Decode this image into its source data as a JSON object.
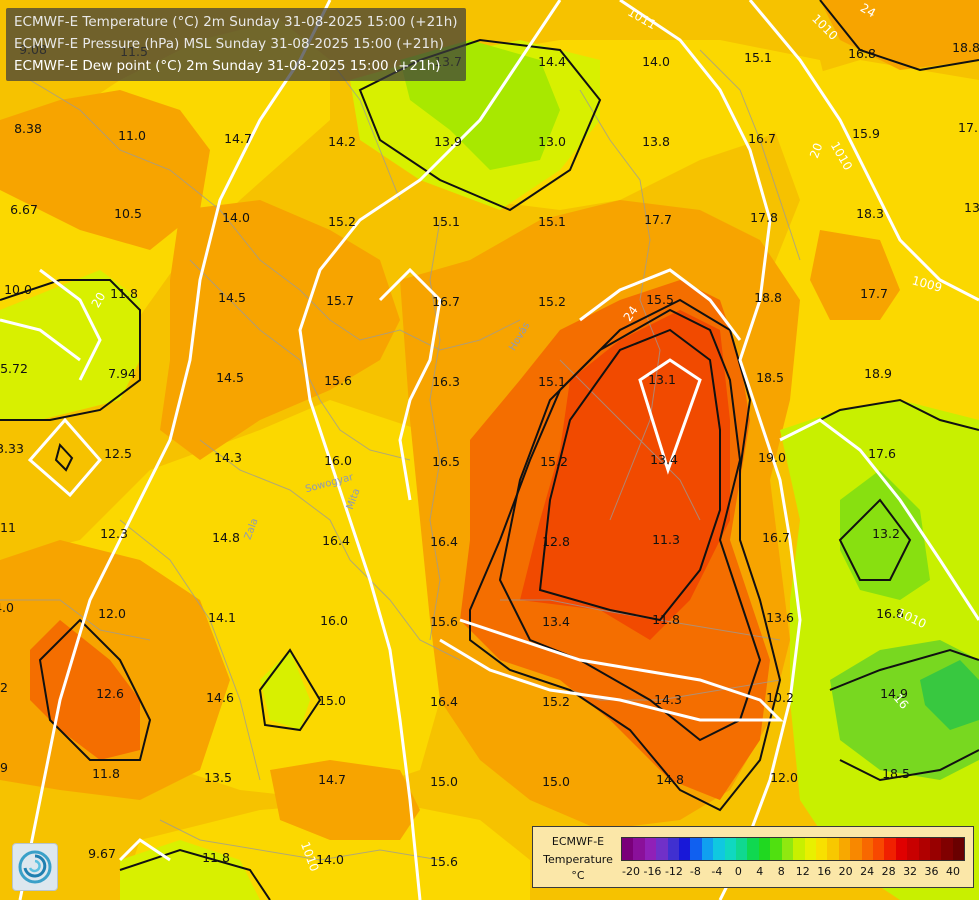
{
  "header": {
    "lines": [
      "ECMWF-E Temperature (°C) 2m Sunday 31-08-2025 15:00 (+21h)",
      "ECMWF-E Pressure (hPa) MSL Sunday 31-08-2025 15:00 (+21h)",
      "ECMWF-E Dew point (°C) 2m Sunday 31-08-2025 15:00 (+21h)"
    ]
  },
  "map": {
    "values": [
      "9.08",
      "11.5",
      "13.7",
      "14.4",
      "14.0",
      "15.1",
      "16.8",
      "18.8",
      "8.38",
      "11.0",
      "14.7",
      "14.2",
      "13.9",
      "13.0",
      "13.8",
      "16.7",
      "15.9",
      "17.",
      "6.67",
      "10.5",
      "14.0",
      "15.2",
      "15.1",
      "15.1",
      "17.7",
      "17.8",
      "18.3",
      "13",
      "10.0",
      "11.8",
      "14.5",
      "15.7",
      "16.7",
      "15.2",
      "15.5",
      "18.8",
      "17.7",
      "5.72",
      "7.94",
      "14.5",
      "15.6",
      "16.3",
      "15.1",
      "13.1",
      "18.5",
      "18.9",
      "3.33",
      "12.5",
      "14.3",
      "16.0",
      "16.5",
      "15.2",
      "13.4",
      "19.0",
      "17.6",
      ".11",
      "12.3",
      "14.8",
      "16.4",
      "16.4",
      "12.8",
      "11.3",
      "16.7",
      "13.2",
      "4.0",
      "12.0",
      "14.1",
      "16.0",
      "15.6",
      "13.4",
      "11.8",
      "13.6",
      "16.8",
      ".2",
      "12.6",
      "14.6",
      "15.0",
      "16.4",
      "15.2",
      "14.3",
      "10.2",
      "14.9",
      ".9",
      "11.8",
      "13.5",
      "14.7",
      "15.0",
      "15.0",
      "14.8",
      "12.0",
      "18.5",
      "9.67",
      "11.8",
      "14.0",
      "15.6"
    ],
    "isobar_labels": [
      "1011",
      "1010",
      "1010",
      "1009",
      "1010",
      "1010"
    ],
    "dewpoint_labels": [
      "24",
      "20",
      "20",
      "24",
      "16"
    ],
    "river_labels": [
      "Hovás",
      "Sowogyar",
      "Zala",
      "Mita"
    ]
  },
  "scale": {
    "title_lines": [
      "ECMWF-E",
      "Temperature",
      "°C"
    ],
    "ticks": [
      "-20",
      "-16",
      "-12",
      "-8",
      "-4",
      "0",
      "4",
      "8",
      "12",
      "16",
      "20",
      "24",
      "28",
      "32",
      "36",
      "40"
    ],
    "colors": [
      "#7a007a",
      "#8a109a",
      "#9020b8",
      "#7030c8",
      "#4030d0",
      "#1818d8",
      "#1060f0",
      "#10a0f0",
      "#10c8e0",
      "#10d8c0",
      "#10d890",
      "#10d850",
      "#20d820",
      "#50e010",
      "#90e810",
      "#c8f000",
      "#e8f000",
      "#f8e000",
      "#f8c800",
      "#f8a800",
      "#f88800",
      "#f86800",
      "#f84800",
      "#f02000",
      "#e00000",
      "#c80000",
      "#b00000",
      "#980000",
      "#800000",
      "#6a0000"
    ]
  }
}
